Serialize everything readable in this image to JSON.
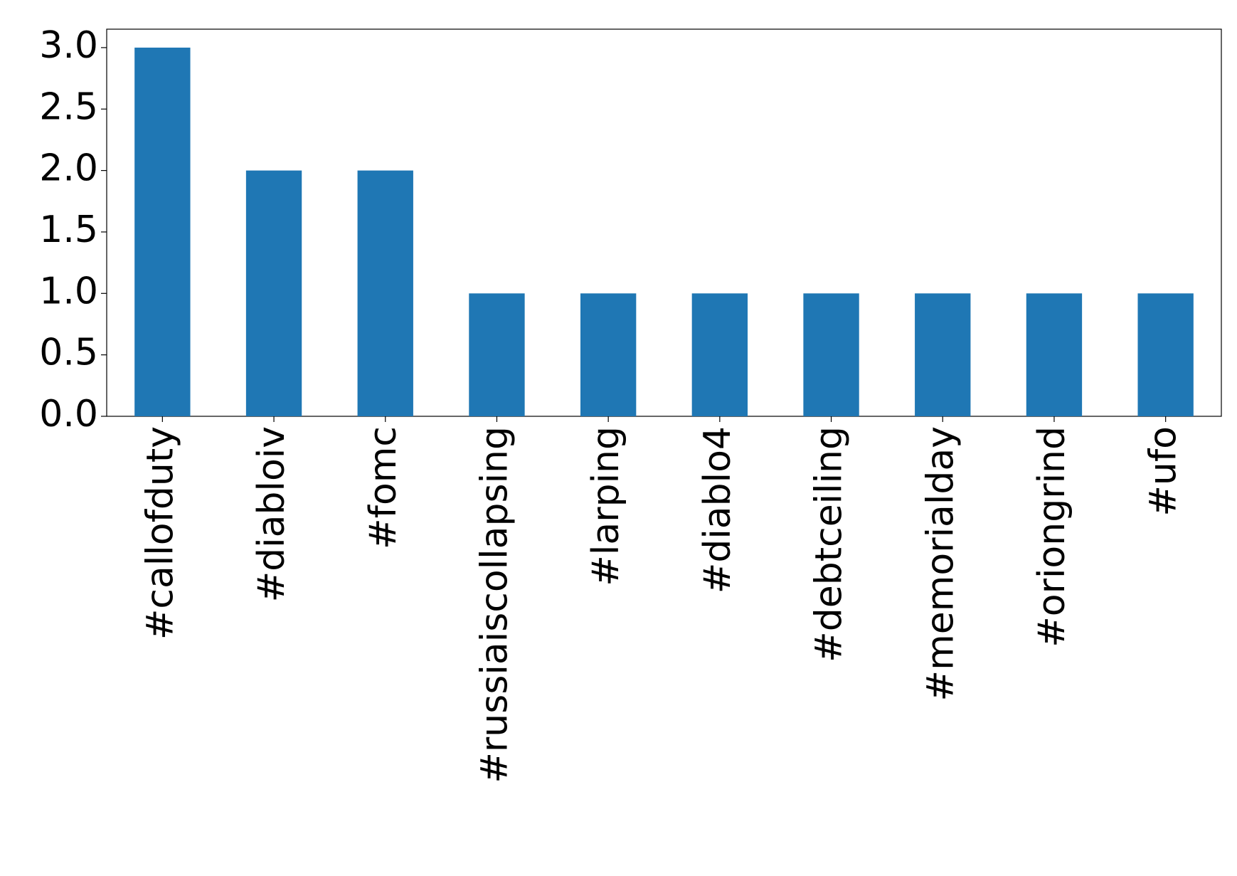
{
  "chart_data": {
    "type": "bar",
    "categories": [
      "#callofduty",
      "#diabloiv",
      "#fomc",
      "#russiaiscollapsing",
      "#larping",
      "#diablo4",
      "#debtceiling",
      "#memorialday",
      "#oriongrind",
      "#ufo"
    ],
    "values": [
      3,
      2,
      2,
      1,
      1,
      1,
      1,
      1,
      1,
      1
    ],
    "color": "#1f77b4",
    "ylim": [
      0,
      3.15
    ],
    "yticks": [
      {
        "value": 0,
        "label": "0.0"
      },
      {
        "value": 0.5,
        "label": "0.5"
      },
      {
        "value": 1,
        "label": "1.0"
      },
      {
        "value": 1.5,
        "label": "1.5"
      },
      {
        "value": 2,
        "label": "2.0"
      },
      {
        "value": 2.5,
        "label": "2.5"
      },
      {
        "value": 3,
        "label": "3.0"
      }
    ],
    "grid": false
  }
}
